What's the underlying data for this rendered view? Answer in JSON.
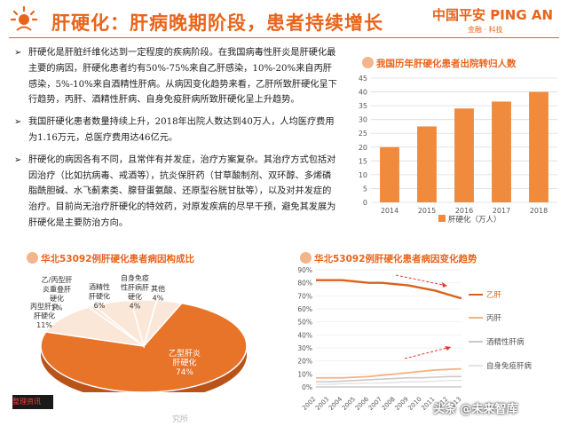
{
  "header": {
    "title": "肝硬化：肝病晚期阶段，患者持续增长",
    "logo_main": "中国平安 PING AN",
    "logo_sub": "金融 · 科技"
  },
  "bullets": [
    "肝硬化是肝脏纤维化达到一定程度的疾病阶段。在我国病毒性肝炎是肝硬化最主要的病因，肝硬化患者约有50%-75%来自乙肝感染，10%-20%来自丙肝感染，5%-10%来自酒精性肝病。从病因变化趋势来看，乙肝所致肝硬化呈下行趋势，丙肝、酒精性肝病、自身免疫肝病所致肝硬化呈上升趋势。",
    "我国肝硬化患者数量持续上升，2018年出院人数达到40万人，人均医疗费用为1.16万元，总医疗费用达46亿元。",
    "肝硬化的病因各有不同，且常伴有并发症，治疗方案复杂。其治疗方式包括对因治疗（比如抗病毒、戒酒等），抗炎保肝药（甘草酸制剂、双环醇、多烯磷脂酰胆碱、水飞蓟素类、腺苷蛋氨酸、还原型谷胱甘肽等），以及对并发症的治疗。目前尚无治疗肝硬化的特效药，对原发疾病的尽早干预，避免其发展为肝硬化是主要防治方向。"
  ],
  "charts": {
    "bar_title": "我国历年肝硬化患者出院转归人数",
    "pie_title": "华北53092例肝硬化患者病因构成比",
    "line_title": "华北53092例肝硬化患者病因变化趋势"
  },
  "footer": {
    "bottom_left": "整理资讯",
    "watermark": "头条 @未来智库",
    "fragment": "究所"
  },
  "colors": {
    "accent": "#e8641b",
    "bar": "#f08a3c",
    "pie_main": "#e8742a",
    "pie_light": "#fbe7d8",
    "line_hbv": "#d9621c",
    "line_hcv": "#f4b183",
    "line_alc": "#c9c9c9",
    "line_aih": "#e3e3e3"
  },
  "chart_data": [
    {
      "type": "bar",
      "title": "我国历年肝硬化患者出院转归人数",
      "categories": [
        "2014",
        "2015",
        "2016",
        "2017",
        "2018"
      ],
      "series": [
        {
          "name": "肝硬化（万人）",
          "values": [
            20,
            27.5,
            34,
            36.5,
            40
          ]
        }
      ],
      "ylim": [
        0,
        45
      ],
      "yticks": [
        0,
        5,
        10,
        15,
        20,
        25,
        30,
        35,
        40,
        45
      ],
      "grid": true,
      "legend": "bottom"
    },
    {
      "type": "pie",
      "title": "华北53092例肝硬化患者病因构成比",
      "slices": [
        {
          "label": "乙型肝炎肝硬化",
          "value": 74
        },
        {
          "label": "丙型肝炎肝硬化",
          "value": 11
        },
        {
          "label": "乙/丙型肝炎重叠肝硬化",
          "value": 1
        },
        {
          "label": "酒精性肝硬化",
          "value": 6
        },
        {
          "label": "自身免疫性肝病肝硬化",
          "value": 4
        },
        {
          "label": "其他",
          "value": 4
        }
      ]
    },
    {
      "type": "line",
      "title": "华北53092例肝硬化患者病因变化趋势",
      "x": [
        "2002",
        "2003",
        "2004",
        "2005",
        "2006",
        "2007",
        "2008",
        "2009",
        "2010",
        "2011",
        "2012",
        "2013"
      ],
      "series": [
        {
          "name": "乙肝",
          "values": [
            82,
            82,
            82,
            81,
            80,
            80,
            79,
            78,
            76,
            74,
            71,
            68
          ]
        },
        {
          "name": "丙肝",
          "values": [
            7,
            7,
            7,
            7.5,
            8,
            9,
            10,
            11,
            12,
            13,
            13.5,
            14
          ]
        },
        {
          "name": "酒精性肝病",
          "values": [
            4,
            4,
            4.5,
            5,
            5.5,
            6,
            6.5,
            7,
            7,
            7.5,
            8,
            8
          ]
        },
        {
          "name": "自身免疫肝病",
          "values": [
            2,
            2,
            2.5,
            2.5,
            3,
            3,
            3.5,
            4,
            4,
            4.5,
            5,
            5
          ]
        }
      ],
      "ylim": [
        0,
        90
      ],
      "yticks": [
        "0%",
        "10%",
        "20%",
        "30%",
        "40%",
        "50%",
        "60%",
        "70%",
        "80%",
        "90%"
      ],
      "legend": "right"
    }
  ]
}
